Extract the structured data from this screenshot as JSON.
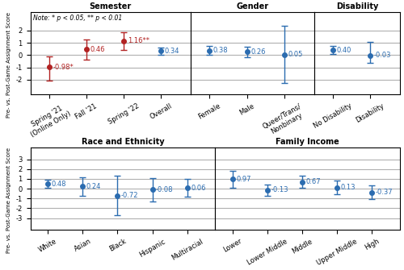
{
  "chart_data": [
    {
      "type": "scatter",
      "title": "Semester",
      "categories": [
        "Spring '21\n(Online Only)",
        "Fall '21",
        "Spring '22",
        "Overall"
      ],
      "values": [
        -0.98,
        0.46,
        1.16,
        0.34
      ],
      "ci_low": [
        -2.1,
        -0.35,
        0.45,
        0.05
      ],
      "ci_high": [
        -0.1,
        1.25,
        1.87,
        0.63
      ],
      "colors": [
        "#b22222",
        "#b22222",
        "#b22222",
        "#2b6cb0"
      ],
      "data_labels": true,
      "value_labels": [
        "-0.98*",
        "0.46",
        "1.16**",
        "0.34"
      ],
      "annotation": "Note: * p < 0.05, ** p < 0.01",
      "ylabel": "Pre- vs. Post-Game Assignment Score",
      "ylim": [
        -3.2,
        3.5
      ],
      "yticks": [
        -2,
        -1,
        0,
        1,
        2
      ],
      "grid": true,
      "marker": "o"
    },
    {
      "type": "scatter",
      "title": "Gender",
      "categories": [
        "Female",
        "Male",
        "Queer/Trans/\nNonbinary"
      ],
      "values": [
        0.38,
        0.26,
        0.05
      ],
      "ci_low": [
        0.02,
        -0.15,
        -2.3
      ],
      "ci_high": [
        0.75,
        0.65,
        2.4
      ],
      "colors": [
        "#2b6cb0",
        "#2b6cb0",
        "#2b6cb0"
      ],
      "data_labels": true,
      "value_labels": [
        "0.38",
        "0.26",
        "0.05"
      ],
      "ylim": [
        -3.2,
        3.5
      ],
      "yticks": [
        -2,
        -1,
        0,
        1,
        2
      ],
      "grid": true,
      "marker": "o",
      "tick_labels": "x"
    },
    {
      "type": "scatter",
      "title": "Disability",
      "categories": [
        "No Disability",
        "Disability"
      ],
      "values": [
        0.4,
        -0.03
      ],
      "ci_low": [
        0.1,
        -0.65
      ],
      "ci_high": [
        0.72,
        1.05
      ],
      "colors": [
        "#2b6cb0",
        "#2b6cb0"
      ],
      "data_labels": true,
      "value_labels": [
        "0.40",
        "-0.03"
      ],
      "ylim": [
        -3.2,
        3.5
      ],
      "yticks": [
        -2,
        -1,
        0,
        1,
        2
      ],
      "grid": true,
      "marker": "o",
      "tick_labels": "x"
    },
    {
      "type": "scatter",
      "title": "Race and Ethnicity",
      "categories": [
        "White",
        "Asian",
        "Black",
        "Hispanic",
        "Multiracial"
      ],
      "values": [
        0.48,
        0.24,
        -0.72,
        -0.08,
        0.06
      ],
      "ci_low": [
        0.05,
        -0.75,
        -2.75,
        -1.3,
        -0.85
      ],
      "ci_high": [
        0.9,
        1.2,
        1.3,
        1.1,
        0.97
      ],
      "colors": [
        "#2b6cb0",
        "#2b6cb0",
        "#2b6cb0",
        "#2b6cb0",
        "#2b6cb0"
      ],
      "data_labels": true,
      "value_labels": [
        "0.48",
        "0.24",
        "-0.72",
        "-0.08",
        "0.06"
      ],
      "ylabel": "Pre- vs. Post-Game Assignment Score",
      "ylim": [
        -4.2,
        4.2
      ],
      "yticks": [
        -3,
        -2,
        -1,
        0,
        1,
        2,
        3
      ],
      "grid": true,
      "marker": "o"
    },
    {
      "type": "scatter",
      "title": "Family Income",
      "categories": [
        "Lower",
        "Lower Middle",
        "Middle",
        "Upper Middle",
        "High"
      ],
      "values": [
        0.97,
        -0.13,
        0.67,
        0.13,
        -0.37
      ],
      "ci_low": [
        0.1,
        -0.75,
        0.05,
        -0.55,
        -1.05
      ],
      "ci_high": [
        1.85,
        0.45,
        1.3,
        0.8,
        0.32
      ],
      "colors": [
        "#2b6cb0",
        "#2b6cb0",
        "#2b6cb0",
        "#2b6cb0",
        "#2b6cb0"
      ],
      "data_labels": true,
      "value_labels": [
        "0.97",
        "-0.13",
        "0.67",
        "0.13",
        "-0.37"
      ],
      "ylim": [
        -4.2,
        4.2
      ],
      "yticks": [
        -3,
        -2,
        -1,
        0,
        1,
        2,
        3
      ],
      "grid": true,
      "marker": "o",
      "tick_labels": "x"
    }
  ]
}
